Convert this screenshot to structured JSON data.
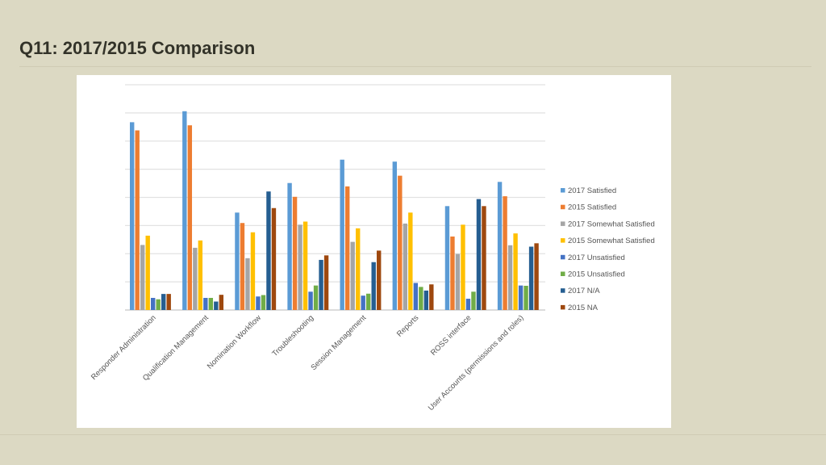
{
  "slide": {
    "title": "Q11: 2017/2015 Comparison"
  },
  "chart_data": {
    "type": "bar",
    "title": "",
    "xlabel": "",
    "ylabel": "",
    "ylim": [
      0,
      8
    ],
    "grid": true,
    "legend_position": "right",
    "categories": [
      "Responder Administration",
      "Qualification Management",
      "Nomination Workflow",
      "Troubleshooting",
      "Session Management",
      "Reports",
      "ROSS interface",
      "User Accounts (permissions and roles)"
    ],
    "series": [
      {
        "name": "2017 Satisfied",
        "color": "#5b9bd5",
        "values": [
          6.67,
          7.06,
          3.46,
          4.51,
          5.34,
          5.27,
          3.69,
          4.55
        ]
      },
      {
        "name": "2015 Satisfied",
        "color": "#ed7d31",
        "values": [
          6.38,
          6.56,
          3.09,
          4.02,
          4.39,
          4.77,
          2.61,
          4.04
        ]
      },
      {
        "name": "2017 Somewhat Satisfied",
        "color": "#a5a5a5",
        "values": [
          2.31,
          2.21,
          1.84,
          3.03,
          2.42,
          3.07,
          1.99,
          2.3
        ]
      },
      {
        "name": "2015 Somewhat Satisfied",
        "color": "#ffc000",
        "values": [
          2.64,
          2.47,
          2.76,
          3.14,
          2.9,
          3.46,
          3.03,
          2.72
        ]
      },
      {
        "name": "2017 Unsatisfied",
        "color": "#4472c4",
        "values": [
          0.43,
          0.43,
          0.48,
          0.65,
          0.51,
          0.96,
          0.4,
          0.87
        ]
      },
      {
        "name": "2015 Unsatisfied",
        "color": "#70ad47",
        "values": [
          0.38,
          0.43,
          0.53,
          0.87,
          0.58,
          0.82,
          0.65,
          0.86
        ]
      },
      {
        "name": "2017 N/A",
        "color": "#255e91",
        "values": [
          0.57,
          0.3,
          4.21,
          1.78,
          1.7,
          0.69,
          3.94,
          2.25
        ]
      },
      {
        "name": "2015 NA",
        "color": "#9e480e",
        "values": [
          0.57,
          0.54,
          3.62,
          1.94,
          2.11,
          0.91,
          3.69,
          2.37
        ]
      }
    ]
  }
}
